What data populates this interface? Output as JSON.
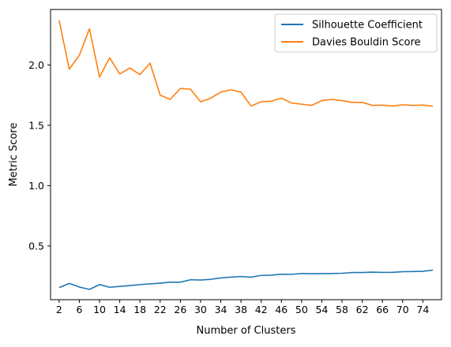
{
  "chart_data": {
    "type": "line",
    "title": "",
    "xlabel": "Number of Clusters",
    "ylabel": "Metric Score",
    "xlim": [
      0.3,
      77.7
    ],
    "ylim": [
      0.055,
      2.46
    ],
    "xticks": [
      2,
      6,
      10,
      14,
      18,
      22,
      26,
      30,
      34,
      38,
      42,
      46,
      50,
      54,
      58,
      62,
      66,
      70,
      74
    ],
    "yticks": [
      0.5,
      1.0,
      1.5,
      2.0
    ],
    "ytick_labels": [
      "0.5",
      "1.0",
      "1.5",
      "2.0"
    ],
    "grid": false,
    "legend": "top-right",
    "x": [
      2,
      4,
      6,
      8,
      10,
      12,
      14,
      16,
      18,
      20,
      22,
      24,
      26,
      28,
      30,
      32,
      34,
      36,
      38,
      40,
      42,
      44,
      46,
      48,
      50,
      52,
      54,
      56,
      58,
      60,
      62,
      64,
      66,
      68,
      70,
      72,
      74,
      76
    ],
    "series": [
      {
        "name": "Silhouette Coefficient",
        "color": "#1f77b4",
        "values": [
          0.155,
          0.19,
          0.16,
          0.14,
          0.18,
          0.158,
          0.165,
          0.172,
          0.18,
          0.186,
          0.192,
          0.2,
          0.2,
          0.22,
          0.218,
          0.224,
          0.235,
          0.242,
          0.247,
          0.242,
          0.256,
          0.258,
          0.266,
          0.265,
          0.272,
          0.27,
          0.271,
          0.272,
          0.274,
          0.28,
          0.28,
          0.283,
          0.281,
          0.282,
          0.287,
          0.288,
          0.29,
          0.3
        ]
      },
      {
        "name": "Davies Bouldin Score",
        "color": "#ff7f0e",
        "values": [
          2.37,
          1.965,
          2.08,
          2.3,
          1.9,
          2.06,
          1.925,
          1.975,
          1.92,
          2.015,
          1.75,
          1.715,
          1.805,
          1.8,
          1.695,
          1.725,
          1.775,
          1.795,
          1.775,
          1.66,
          1.695,
          1.7,
          1.725,
          1.685,
          1.675,
          1.665,
          1.705,
          1.715,
          1.705,
          1.69,
          1.69,
          1.665,
          1.667,
          1.66,
          1.67,
          1.665,
          1.668,
          1.658
        ]
      }
    ]
  }
}
